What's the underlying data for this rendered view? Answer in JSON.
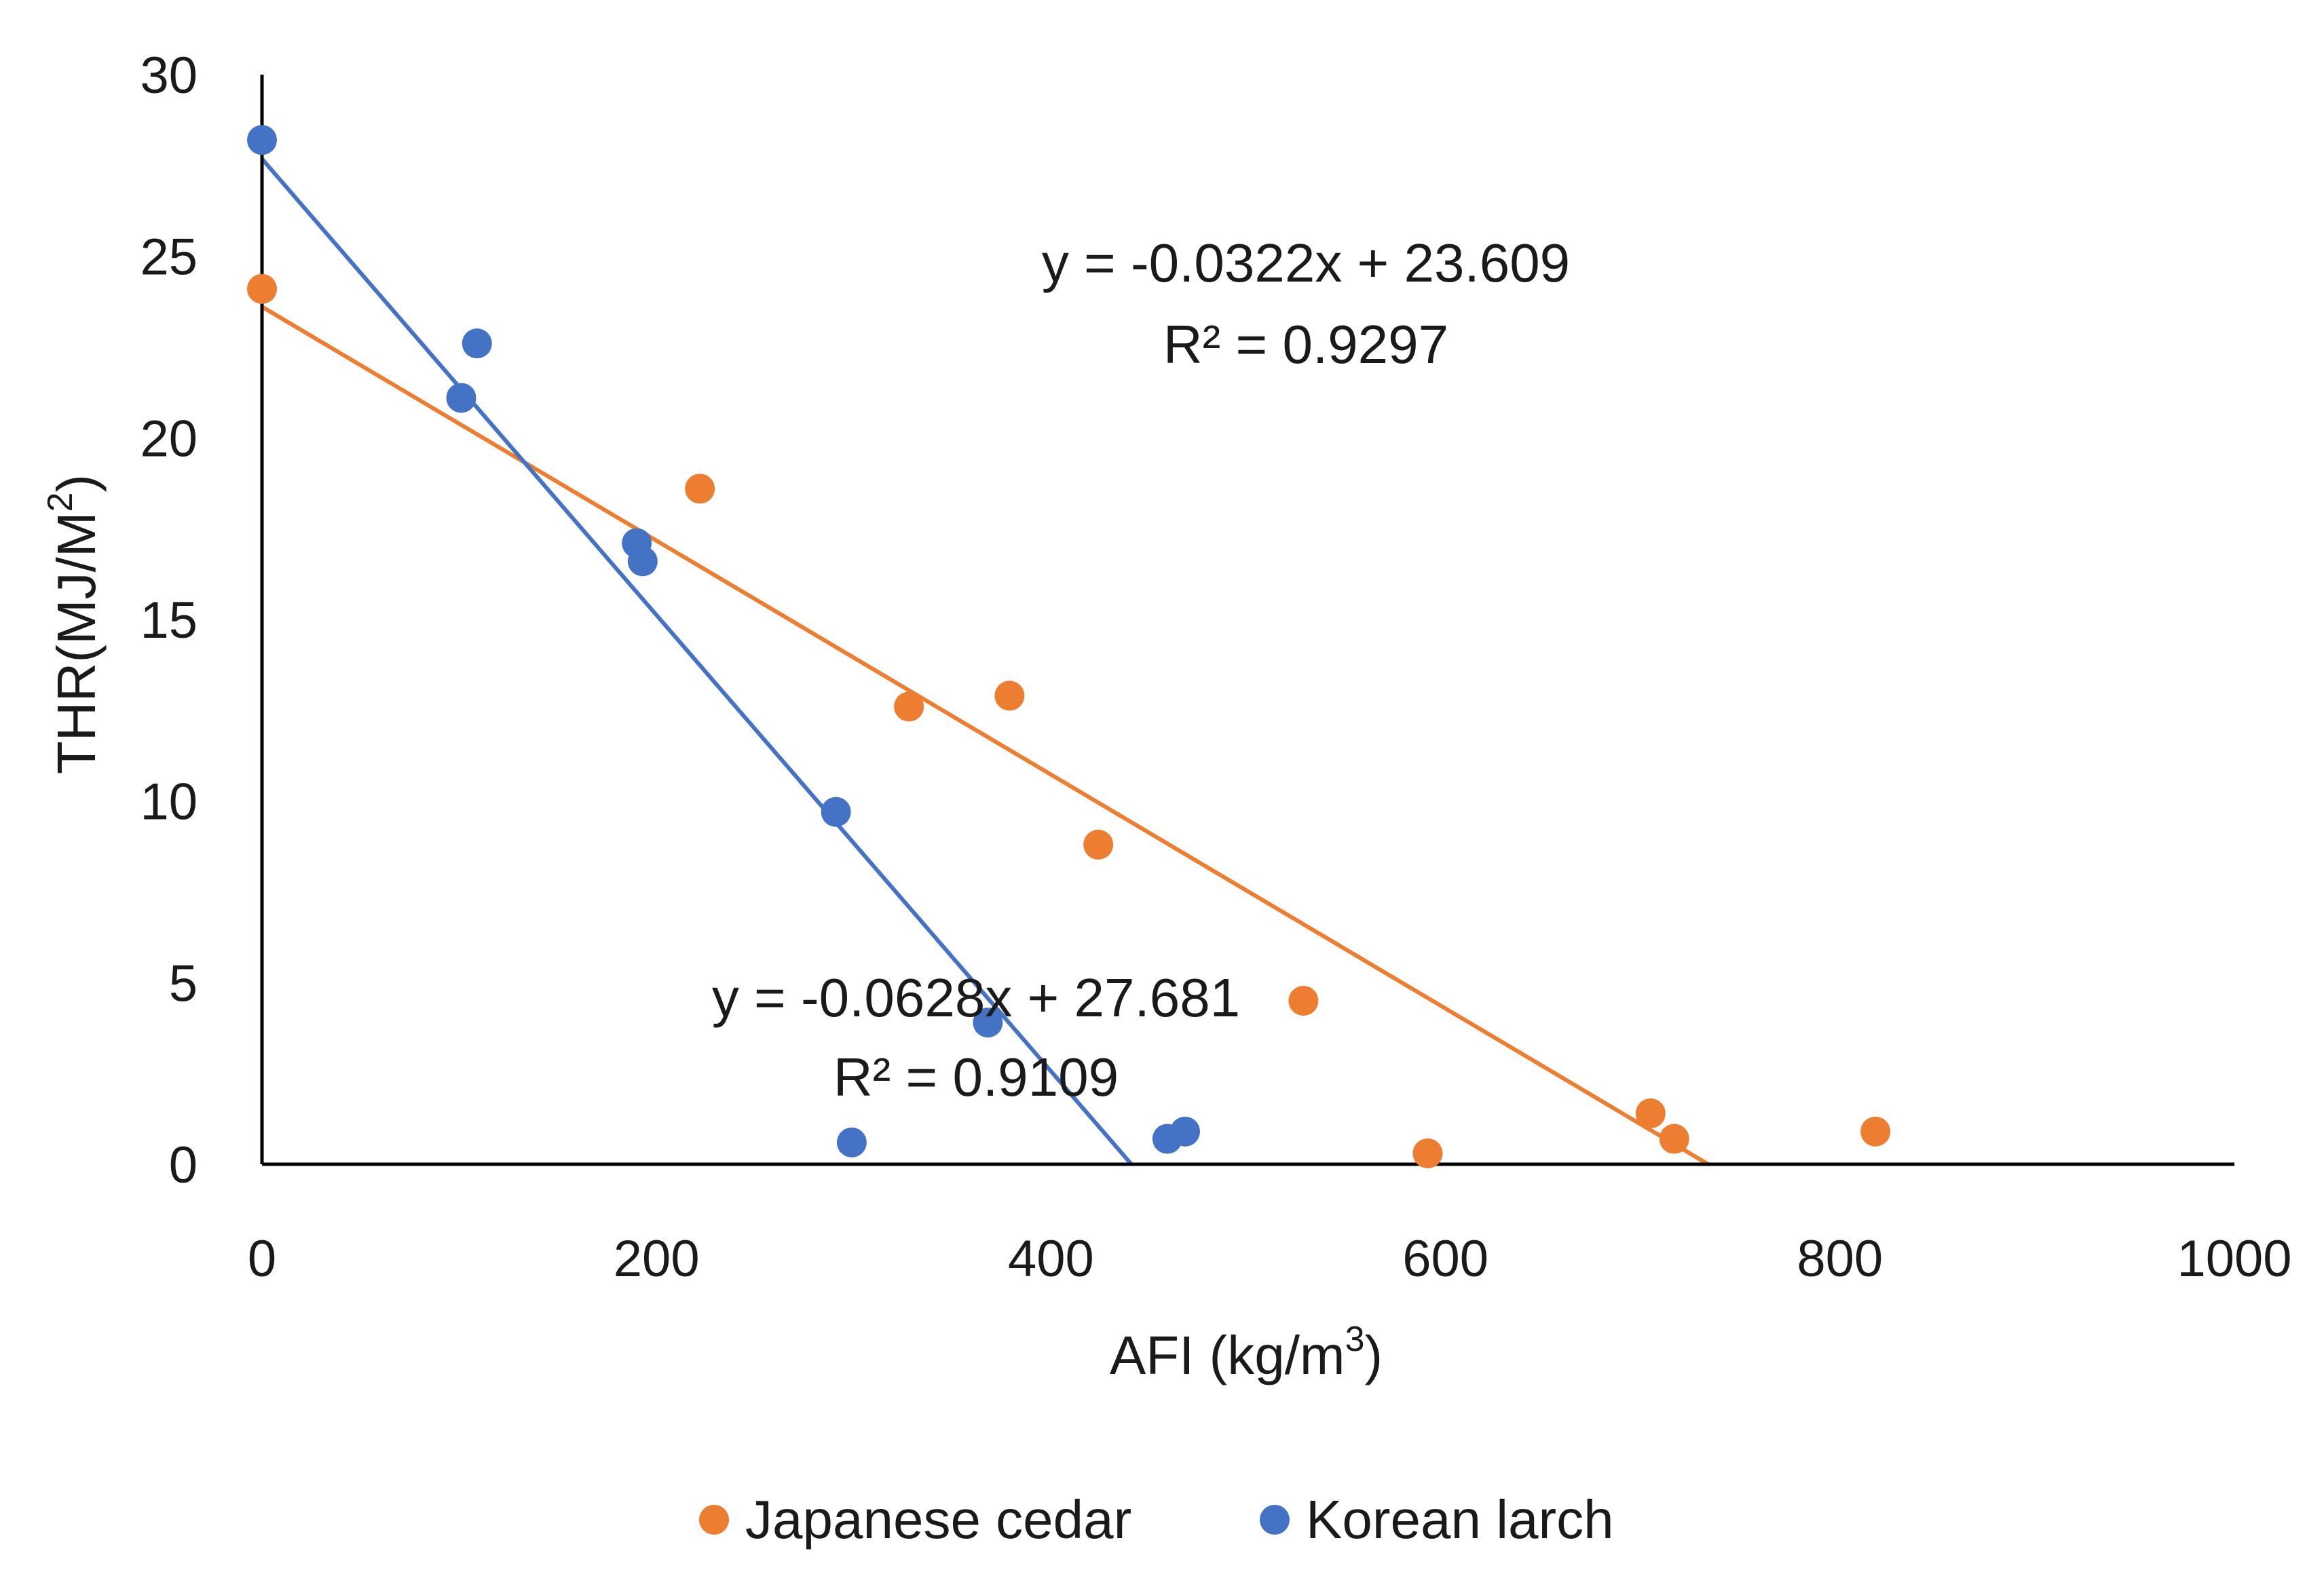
{
  "chart_data": {
    "type": "scatter",
    "xlabel": "AFI (kg/m",
    "xlabel_sup": "3",
    "xlabel_close": ")",
    "ylabel": "THR(MJ/M",
    "ylabel_sup": "2",
    "ylabel_close": ")",
    "xlim": [
      0,
      1000
    ],
    "ylim": [
      0,
      30
    ],
    "xticks": [
      0,
      200,
      400,
      600,
      800,
      1000
    ],
    "yticks": [
      0,
      5,
      10,
      15,
      20,
      25,
      30
    ],
    "grid": false,
    "legend_position": "bottom",
    "series": [
      {
        "name": "Japanese cedar",
        "color": "#ED7D31",
        "points": [
          {
            "x": 0,
            "y": 24.1
          },
          {
            "x": 222,
            "y": 18.6
          },
          {
            "x": 328,
            "y": 12.6
          },
          {
            "x": 379,
            "y": 12.9
          },
          {
            "x": 424,
            "y": 8.8
          },
          {
            "x": 528,
            "y": 4.5
          },
          {
            "x": 591,
            "y": 0.3
          },
          {
            "x": 704,
            "y": 1.4
          },
          {
            "x": 716,
            "y": 0.7
          },
          {
            "x": 818,
            "y": 0.9
          }
        ],
        "trendline": {
          "slope": -0.0322,
          "intercept": 23.609,
          "equation": "y = -0.0322x + 23.609",
          "r2": "R² = 0.9297"
        }
      },
      {
        "name": "Korean larch",
        "color": "#4472C4",
        "points": [
          {
            "x": 0,
            "y": 28.2
          },
          {
            "x": 109,
            "y": 22.6
          },
          {
            "x": 101,
            "y": 21.1
          },
          {
            "x": 190,
            "y": 17.1
          },
          {
            "x": 193,
            "y": 16.6
          },
          {
            "x": 291,
            "y": 9.7
          },
          {
            "x": 299,
            "y": 0.6
          },
          {
            "x": 368,
            "y": 3.9
          },
          {
            "x": 459,
            "y": 0.7
          },
          {
            "x": 468,
            "y": 0.9
          }
        ],
        "trendline": {
          "slope": -0.0628,
          "intercept": 27.681,
          "equation": "y = -0.0628x + 27.681",
          "r2": "R² = 0.9109"
        }
      }
    ]
  }
}
